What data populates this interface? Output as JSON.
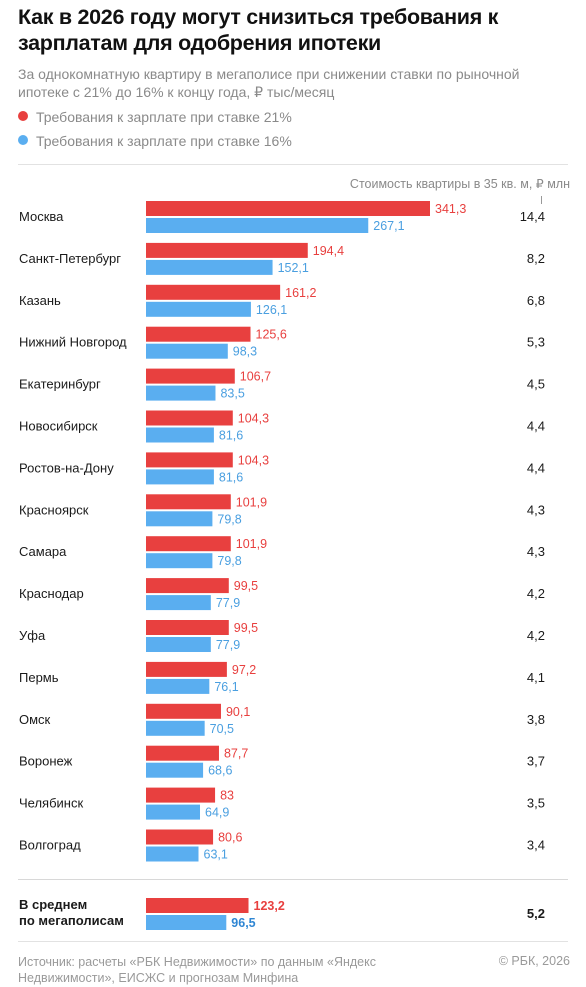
{
  "header": {
    "title": "Как в 2026 году могут снизиться требования к зарплатам для одобрения ипотеки",
    "subtitle": "За однокомнатную квартиру в мегаполисе при снижении ставки по рыночной ипотеке с 21% до 16% к концу года, ₽ тыс/месяц"
  },
  "legend": {
    "series_21": "Требования к зарплате при ставке 21%",
    "series_16": "Требования к зарплате при ставке 16%"
  },
  "colors": {
    "red": "#e8403f",
    "blue": "#5aaef0"
  },
  "cost_header": "Стоимость квартиры в 35 кв. м, ₽ млн",
  "chart_data": {
    "type": "bar",
    "orientation": "horizontal",
    "categories": [
      "Москва",
      "Санкт-Петербург",
      "Казань",
      "Нижний Новгород",
      "Екатеринбург",
      "Новосибирск",
      "Ростов-на-Дону",
      "Красноярск",
      "Самара",
      "Краснодар",
      "Уфа",
      "Пермь",
      "Омск",
      "Воронеж",
      "Челябинск",
      "Волгоград"
    ],
    "series": [
      {
        "name": "Требования к зарплате при ставке 21%",
        "values": [
          341.3,
          194.4,
          161.2,
          125.6,
          106.7,
          104.3,
          104.3,
          101.9,
          101.9,
          99.5,
          99.5,
          97.2,
          90.1,
          87.7,
          83,
          80.6
        ],
        "labels": [
          "341,3",
          "194,4",
          "161,2",
          "125,6",
          "106,7",
          "104,3",
          "104,3",
          "101,9",
          "101,9",
          "99,5",
          "99,5",
          "97,2",
          "90,1",
          "87,7",
          "83",
          "80,6"
        ]
      },
      {
        "name": "Требования к зарплате при ставке 16%",
        "values": [
          267.1,
          152.1,
          126.1,
          98.3,
          83.5,
          81.6,
          81.6,
          79.8,
          79.8,
          77.9,
          77.9,
          76.1,
          70.5,
          68.6,
          64.9,
          63.1
        ],
        "labels": [
          "267,1",
          "152,1",
          "126,1",
          "98,3",
          "83,5",
          "81,6",
          "81,6",
          "79,8",
          "79,8",
          "77,9",
          "77,9",
          "76,1",
          "70,5",
          "68,6",
          "64,9",
          "63,1"
        ]
      }
    ],
    "apartment_cost": [
      "14,4",
      "8,2",
      "6,8",
      "5,3",
      "4,5",
      "4,4",
      "4,4",
      "4,3",
      "4,3",
      "4,2",
      "4,2",
      "4,1",
      "3,8",
      "3,7",
      "3,5",
      "3,4"
    ],
    "average": {
      "label_line1": "В среднем",
      "label_line2": "по мегаполисам",
      "value_21": 123.2,
      "label_21": "123,2",
      "value_16": 96.5,
      "label_16": "96,5",
      "cost": "5,2"
    },
    "xlim": [
      0,
      341.3
    ],
    "grid": false
  },
  "footer": {
    "source": "Источник: расчеты «РБК Недвижимости» по данным «Яндекс Недвижимости», ЕИСЖС и прогнозам Минфина",
    "copyright": "© РБК, 2026"
  }
}
